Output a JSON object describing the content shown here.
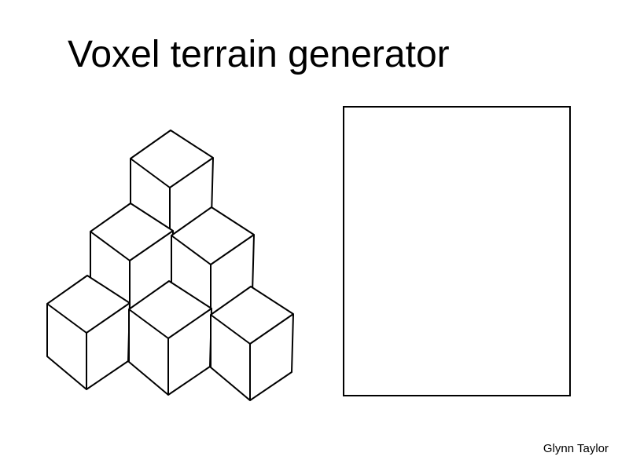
{
  "slide": {
    "title": "Voxel terrain generator",
    "author": "Glynn Taylor"
  },
  "voxel_stack": {
    "cube_count": 6,
    "layers": [
      3,
      2,
      1
    ]
  },
  "colors": {
    "background": "#ffffff",
    "ink": "#000000"
  }
}
